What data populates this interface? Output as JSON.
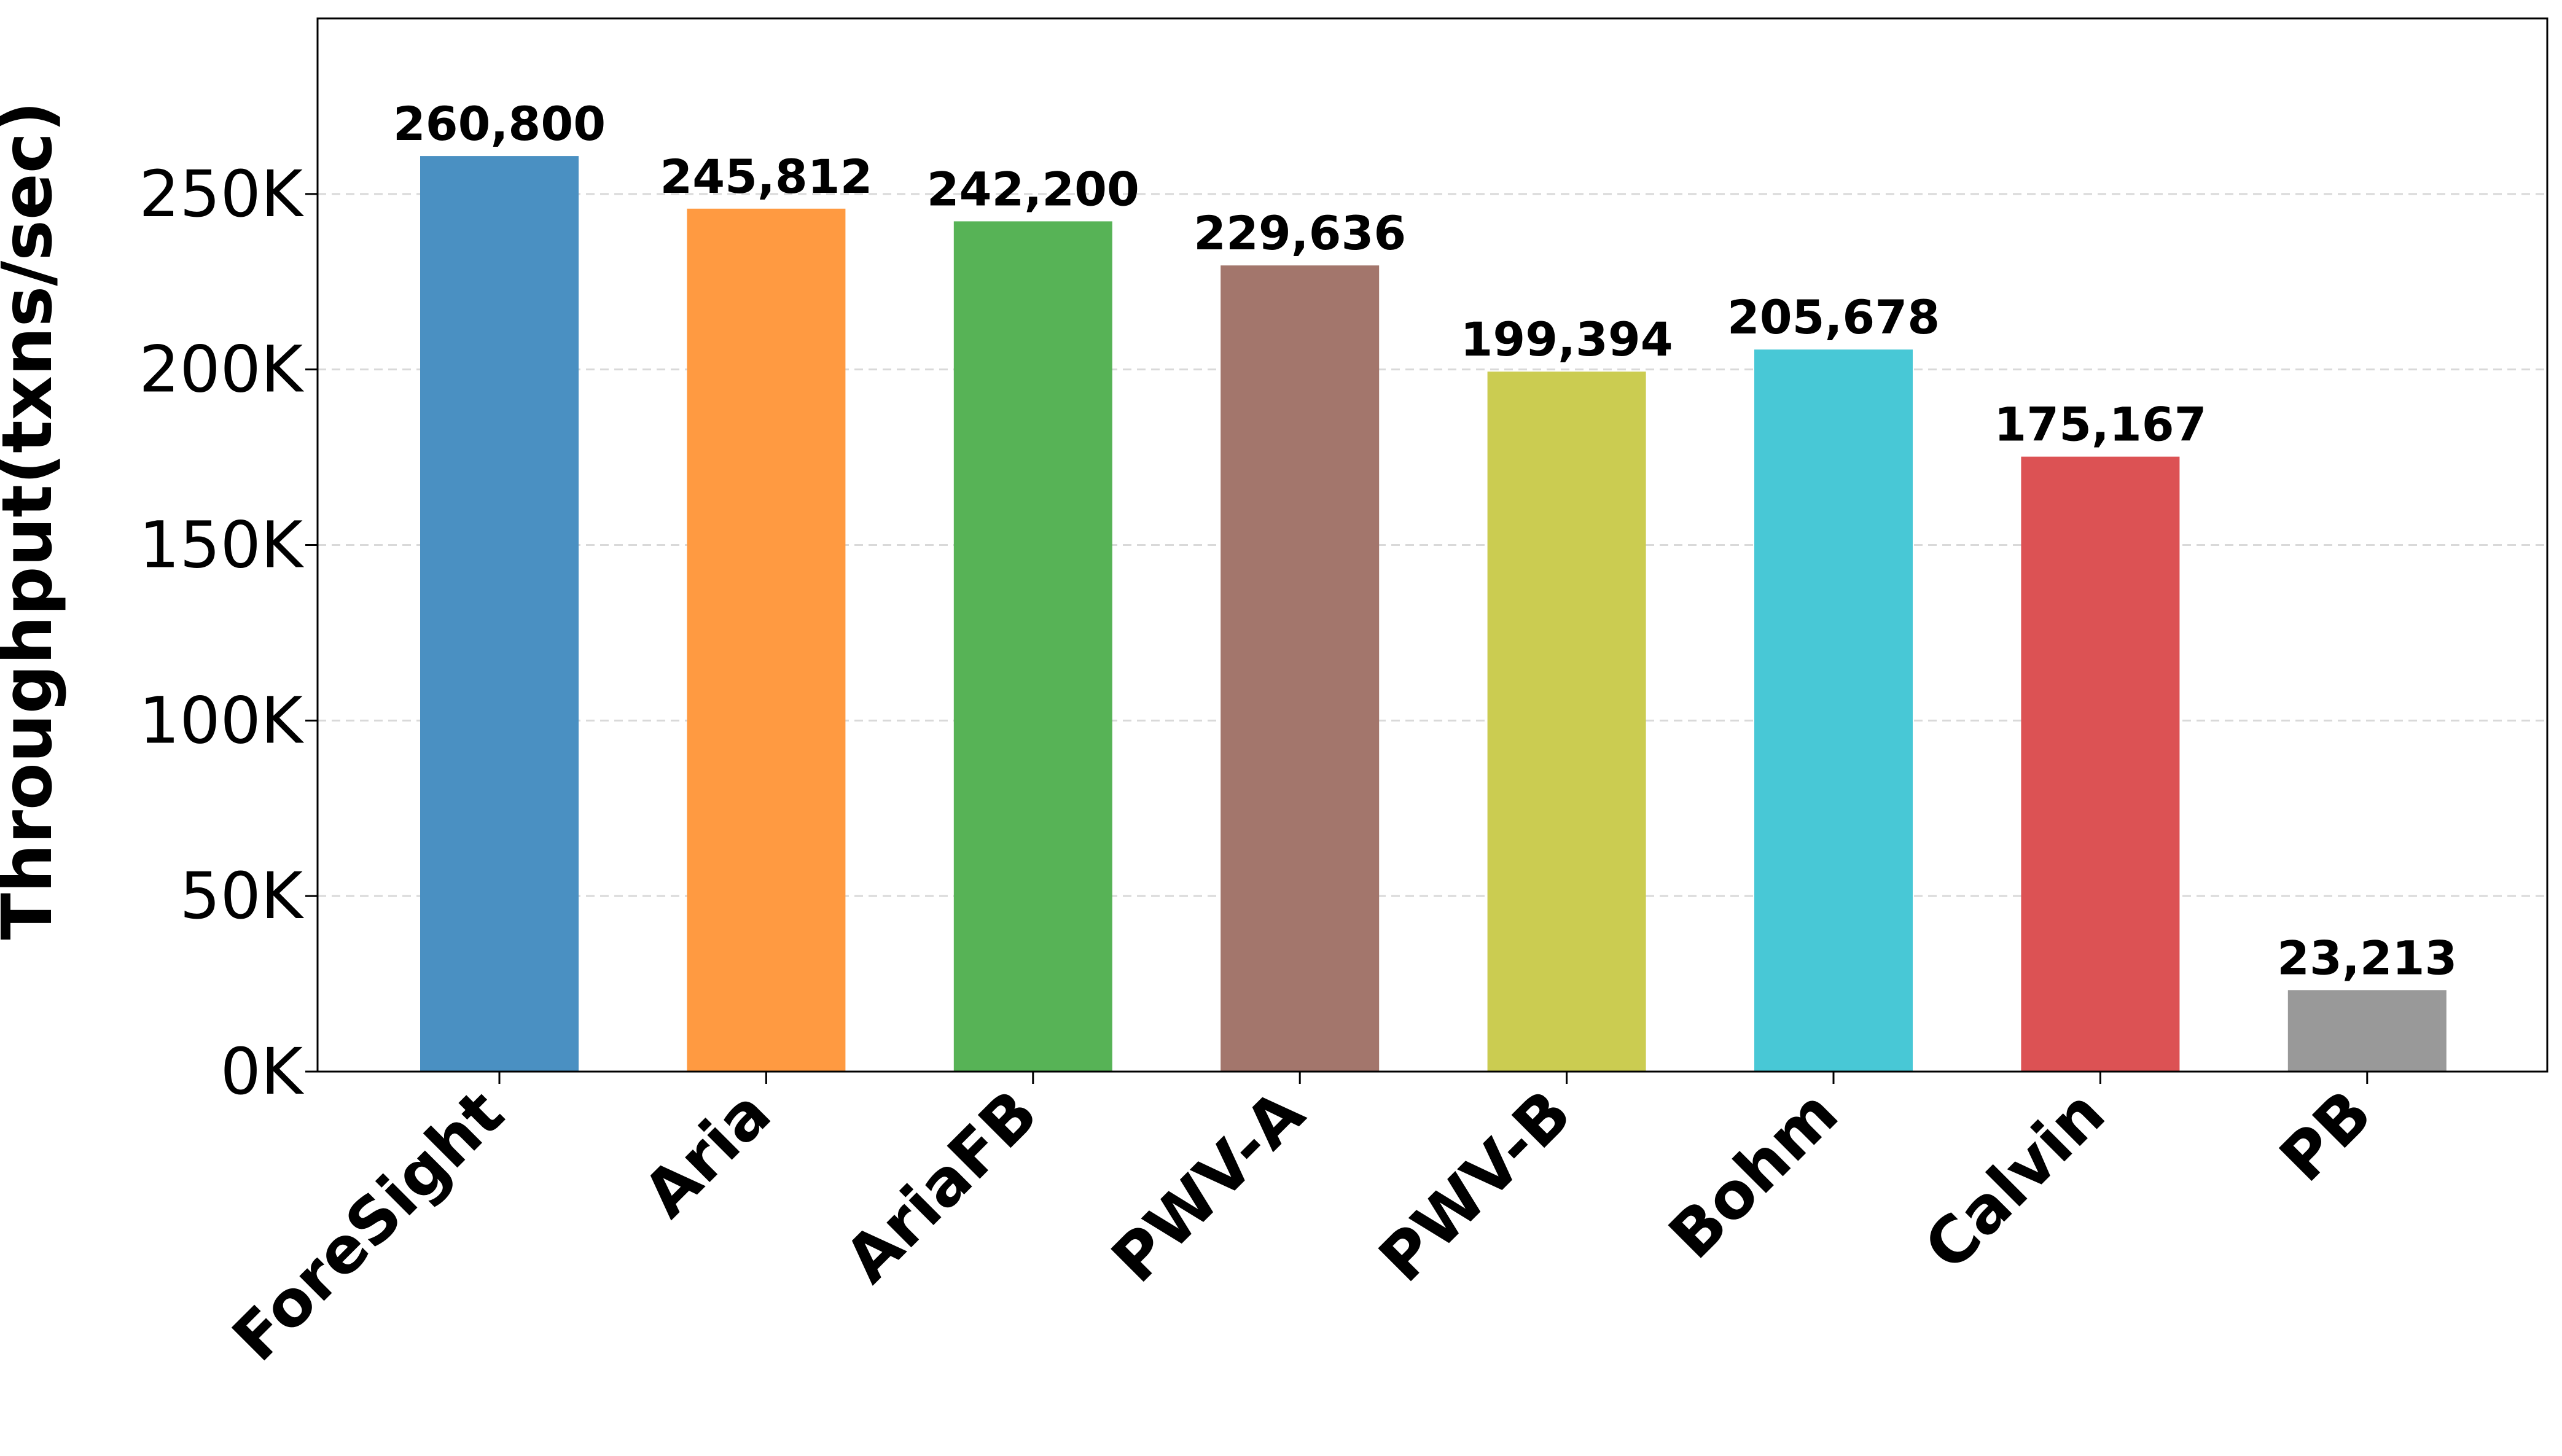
{
  "chart_data": {
    "type": "bar",
    "title": "",
    "xlabel": "",
    "ylabel": "Throughput(txns/sec)",
    "ylim": [
      0,
      300000
    ],
    "yticks": [
      0,
      50000,
      100000,
      150000,
      200000,
      250000
    ],
    "ytick_labels": [
      "0K",
      "50K",
      "100K",
      "150K",
      "200K",
      "250K"
    ],
    "grid": "y dashed",
    "legend": "none",
    "categories": [
      "ForeSight",
      "Aria",
      "AriaFB",
      "PWV-A",
      "PWV-B",
      "Bohm",
      "Calvin",
      "PB"
    ],
    "values": [
      260800,
      245812,
      242200,
      229636,
      199394,
      205678,
      175167,
      23213
    ],
    "value_labels": [
      "260,800",
      "245,812",
      "242,200",
      "229,636",
      "199,394",
      "205,678",
      "175,167",
      "23,213"
    ],
    "colors": [
      "#4a90c2",
      "#ff9a41",
      "#57b356",
      "#a3766c",
      "#cbcc51",
      "#48c8d6",
      "#dc5254",
      "#999999"
    ]
  }
}
